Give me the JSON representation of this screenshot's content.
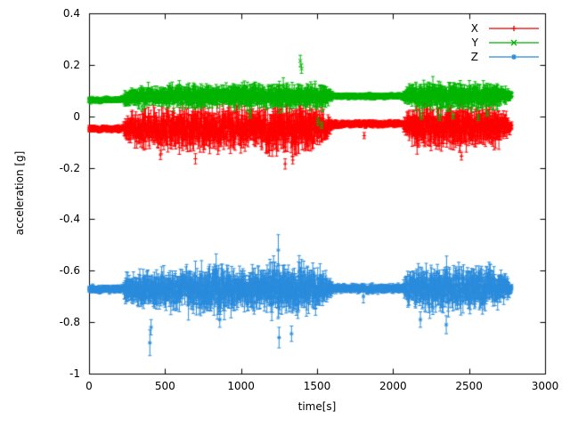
{
  "figure": {
    "background": "#ffffff",
    "axis_color": "#000000",
    "text_color": "#000000"
  },
  "chart_data": {
    "type": "scatter",
    "plot_style": "points-with-yerrorbars",
    "title": "",
    "xlabel": "time[s]",
    "ylabel": "acceleration [g]",
    "xlim": [
      0,
      3000
    ],
    "ylim": [
      -1,
      0.4
    ],
    "xticks": [
      0,
      500,
      1000,
      1500,
      2000,
      2500,
      3000
    ],
    "yticks": [
      0.4,
      0.2,
      0,
      -0.2,
      -0.4,
      -0.6,
      -0.8,
      -1
    ],
    "grid": false,
    "legend": {
      "position": "top-right",
      "entries": [
        "X",
        "Y",
        "Z"
      ]
    },
    "time_range": [
      0,
      2780
    ],
    "sample_step": 2,
    "noise_seed": 1337,
    "series": [
      {
        "name": "X",
        "color": "#ff0000",
        "marker": "plus",
        "description": "noisy band around -0.05 g, quiet 0-230s and 1615-2065s",
        "baseline": [
          [
            0,
            -0.048
          ],
          [
            1560,
            -0.048
          ],
          [
            1620,
            -0.03
          ],
          [
            2060,
            -0.03
          ],
          [
            2110,
            -0.042
          ],
          [
            2780,
            -0.042
          ]
        ],
        "noise_envelope": [
          [
            0,
            0.006
          ],
          [
            225,
            0.006
          ],
          [
            235,
            0.025
          ],
          [
            300,
            0.04
          ],
          [
            420,
            0.038
          ],
          [
            520,
            0.048
          ],
          [
            640,
            0.042
          ],
          [
            760,
            0.055
          ],
          [
            860,
            0.042
          ],
          [
            960,
            0.05
          ],
          [
            1080,
            0.042
          ],
          [
            1200,
            0.055
          ],
          [
            1320,
            0.05
          ],
          [
            1440,
            0.055
          ],
          [
            1520,
            0.04
          ],
          [
            1590,
            0.015
          ],
          [
            1615,
            0.006
          ],
          [
            2065,
            0.006
          ],
          [
            2085,
            0.025
          ],
          [
            2150,
            0.048
          ],
          [
            2280,
            0.042
          ],
          [
            2420,
            0.05
          ],
          [
            2560,
            0.042
          ],
          [
            2680,
            0.045
          ],
          [
            2745,
            0.025
          ],
          [
            2780,
            0.008
          ]
        ],
        "spikes": [
          {
            "t": 470,
            "y": -0.15,
            "err": 0.018
          },
          {
            "t": 700,
            "y": -0.165,
            "err": 0.02
          },
          {
            "t": 1245,
            "y": 0.1,
            "err": 0.015
          },
          {
            "t": 1290,
            "y": -0.185,
            "err": 0.02
          },
          {
            "t": 1340,
            "y": -0.17,
            "err": 0.015
          },
          {
            "t": 1810,
            "y": -0.075,
            "err": 0.012
          },
          {
            "t": 2450,
            "y": -0.155,
            "err": 0.015
          }
        ]
      },
      {
        "name": "Y",
        "color": "#00b400",
        "marker": "cross",
        "description": "noisy band around +0.08 g, spike to 0.22 near t=1390",
        "baseline": [
          [
            0,
            0.062
          ],
          [
            225,
            0.066
          ],
          [
            320,
            0.078
          ],
          [
            1600,
            0.078
          ],
          [
            2780,
            0.08
          ]
        ],
        "noise_envelope": [
          [
            0,
            0.005
          ],
          [
            225,
            0.005
          ],
          [
            235,
            0.015
          ],
          [
            320,
            0.02
          ],
          [
            500,
            0.022
          ],
          [
            700,
            0.025
          ],
          [
            900,
            0.02
          ],
          [
            1020,
            0.028
          ],
          [
            1150,
            0.022
          ],
          [
            1280,
            0.028
          ],
          [
            1420,
            0.024
          ],
          [
            1540,
            0.028
          ],
          [
            1590,
            0.01
          ],
          [
            1615,
            0.005
          ],
          [
            2065,
            0.005
          ],
          [
            2085,
            0.018
          ],
          [
            2220,
            0.028
          ],
          [
            2360,
            0.032
          ],
          [
            2500,
            0.026
          ],
          [
            2640,
            0.028
          ],
          [
            2745,
            0.016
          ],
          [
            2780,
            0.006
          ]
        ],
        "spikes": [
          {
            "t": 350,
            "y": 0.03,
            "err": 0.01
          },
          {
            "t": 1060,
            "y": 0.005,
            "err": 0.012
          },
          {
            "t": 1390,
            "y": 0.215,
            "err": 0.022
          },
          {
            "t": 1398,
            "y": 0.185,
            "err": 0.018
          },
          {
            "t": 1505,
            "y": -0.02,
            "err": 0.015
          },
          {
            "t": 1530,
            "y": -0.035,
            "err": 0.012
          },
          {
            "t": 2185,
            "y": 0.0,
            "err": 0.012
          },
          {
            "t": 2305,
            "y": -0.005,
            "err": 0.012
          },
          {
            "t": 2395,
            "y": 0.0,
            "err": 0.01
          },
          {
            "t": 2560,
            "y": -0.005,
            "err": 0.012
          },
          {
            "t": 2620,
            "y": 0.01,
            "err": 0.01
          }
        ]
      },
      {
        "name": "Z",
        "color": "#2b8cdc",
        "marker": "asterisk",
        "description": "noisy band around -0.67 g, spikes to -0.93 near t=400 and -0.46 near t=1245",
        "baseline": [
          [
            0,
            -0.672
          ],
          [
            2780,
            -0.668
          ]
        ],
        "noise_envelope": [
          [
            0,
            0.007
          ],
          [
            225,
            0.007
          ],
          [
            235,
            0.028
          ],
          [
            330,
            0.04
          ],
          [
            430,
            0.045
          ],
          [
            560,
            0.04
          ],
          [
            700,
            0.052
          ],
          [
            820,
            0.058
          ],
          [
            920,
            0.048
          ],
          [
            1020,
            0.044
          ],
          [
            1160,
            0.052
          ],
          [
            1280,
            0.058
          ],
          [
            1400,
            0.052
          ],
          [
            1500,
            0.048
          ],
          [
            1580,
            0.022
          ],
          [
            1615,
            0.008
          ],
          [
            2065,
            0.008
          ],
          [
            2085,
            0.035
          ],
          [
            2200,
            0.048
          ],
          [
            2330,
            0.052
          ],
          [
            2460,
            0.044
          ],
          [
            2600,
            0.048
          ],
          [
            2720,
            0.032
          ],
          [
            2780,
            0.01
          ]
        ],
        "spikes": [
          {
            "t": 400,
            "y": -0.88,
            "err": 0.05
          },
          {
            "t": 408,
            "y": -0.82,
            "err": 0.03
          },
          {
            "t": 860,
            "y": -0.79,
            "err": 0.03
          },
          {
            "t": 1245,
            "y": -0.52,
            "err": 0.06
          },
          {
            "t": 1250,
            "y": -0.86,
            "err": 0.04
          },
          {
            "t": 1332,
            "y": -0.845,
            "err": 0.03
          },
          {
            "t": 1805,
            "y": -0.7,
            "err": 0.025
          },
          {
            "t": 2180,
            "y": -0.79,
            "err": 0.03
          },
          {
            "t": 2350,
            "y": -0.81,
            "err": 0.035
          }
        ]
      }
    ]
  }
}
